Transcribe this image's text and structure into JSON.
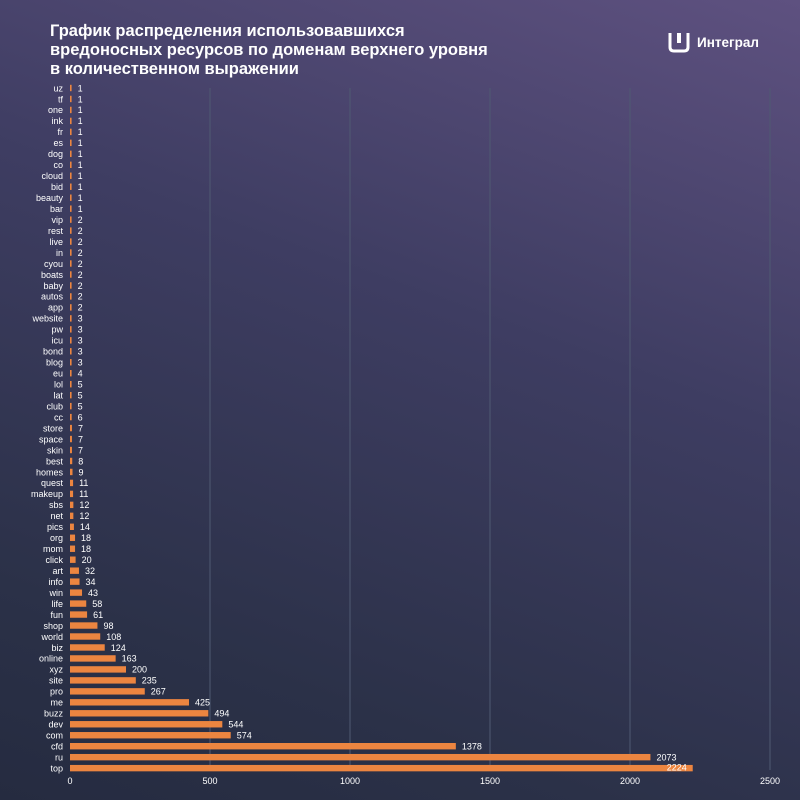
{
  "header": {
    "title_lines": [
      "График распределения использовавшихся",
      "вредоносных ресурсов по доменам верхнего уровня",
      "в количественном выражении"
    ],
    "brand_name": "Интеграл",
    "logo_icon": "integral-logo-icon"
  },
  "colors": {
    "bar": "#ec8540",
    "grid": "#4f5a72",
    "text": "#ffffff"
  },
  "chart_data": {
    "type": "bar",
    "orientation": "horizontal",
    "title": "График распределения использовавшихся вредоносных ресурсов по доменам верхнего уровня в количественном выражении",
    "xlabel": "",
    "ylabel": "",
    "xlim": [
      0,
      2500
    ],
    "x_ticks": [
      0,
      500,
      1000,
      1500,
      2000,
      2500
    ],
    "grid": "vertical",
    "legend": "none",
    "categories": [
      "uz",
      "tf",
      "one",
      "ink",
      "fr",
      "es",
      "dog",
      "co",
      "cloud",
      "bid",
      "beauty",
      "bar",
      "vip",
      "rest",
      "live",
      "in",
      "cyou",
      "boats",
      "baby",
      "autos",
      "app",
      "website",
      "pw",
      "icu",
      "bond",
      "blog",
      "eu",
      "lol",
      "lat",
      "club",
      "cc",
      "store",
      "space",
      "skin",
      "best",
      "homes",
      "quest",
      "makeup",
      "sbs",
      "net",
      "pics",
      "org",
      "mom",
      "click",
      "art",
      "info",
      "win",
      "life",
      "fun",
      "shop",
      "world",
      "biz",
      "online",
      "xyz",
      "site",
      "pro",
      "me",
      "buzz",
      "dev",
      "com",
      "cfd",
      "ru",
      "top"
    ],
    "values": [
      1,
      1,
      1,
      1,
      1,
      1,
      1,
      1,
      1,
      1,
      1,
      1,
      2,
      2,
      2,
      2,
      2,
      2,
      2,
      2,
      2,
      3,
      3,
      3,
      3,
      3,
      4,
      5,
      5,
      5,
      6,
      7,
      7,
      7,
      8,
      9,
      11,
      11,
      12,
      12,
      14,
      18,
      18,
      20,
      32,
      34,
      43,
      58,
      61,
      98,
      108,
      124,
      163,
      200,
      235,
      267,
      425,
      494,
      544,
      574,
      1378,
      2073,
      2224
    ]
  }
}
